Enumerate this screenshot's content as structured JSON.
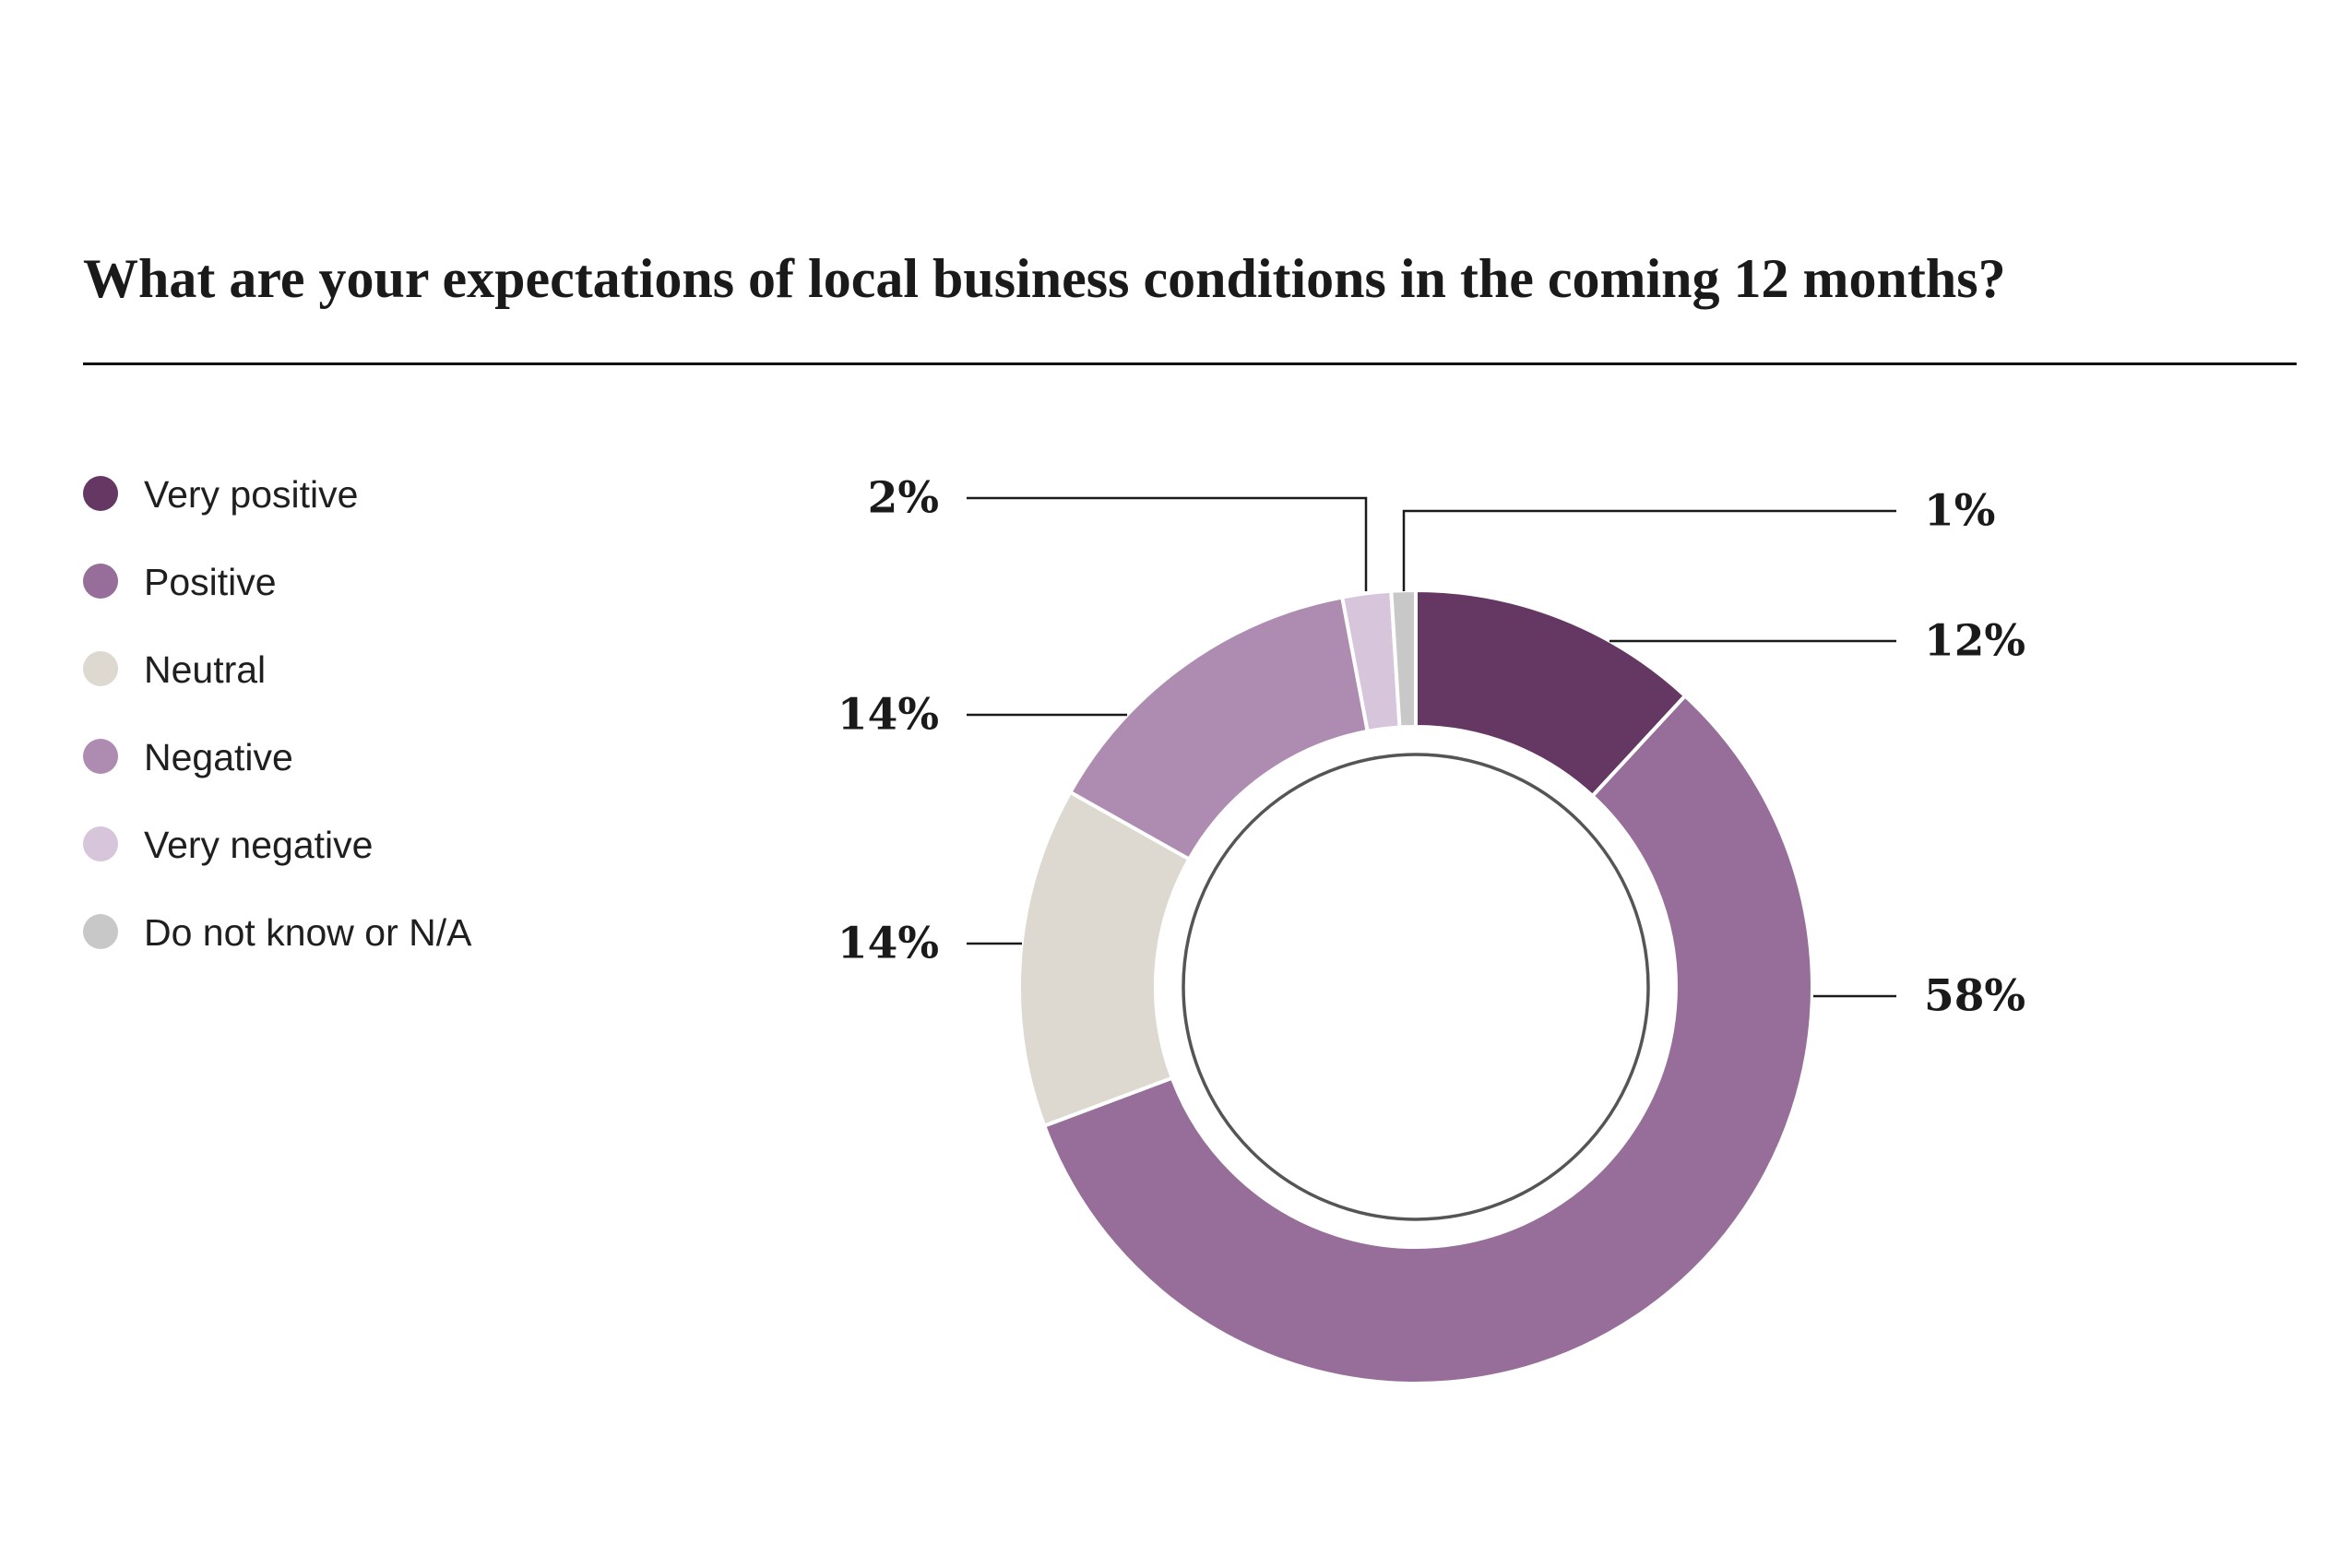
{
  "page": {
    "background": "#ffffff"
  },
  "chart_data": {
    "type": "pie",
    "subtype": "donut",
    "title": "What are your expectations of local business conditions in the coming 12 months?",
    "categories": [
      "Very positive",
      "Positive",
      "Neutral",
      "Negative",
      "Very negative",
      "Do not know or N/A"
    ],
    "values": [
      12,
      58,
      14,
      14,
      2,
      1
    ],
    "labels": [
      "12%",
      "58%",
      "14%",
      "14%",
      "2%",
      "1%"
    ],
    "unit": "%",
    "colors": [
      "#643862",
      "#976d99",
      "#ddd8d0",
      "#ae8bb0",
      "#d7c6db",
      "#c8c8c8"
    ],
    "legend_position": "left",
    "start_angle": "top",
    "direction": "clockwise",
    "line_color": "#1a1a1a",
    "inner_ring_color": "#555555"
  }
}
